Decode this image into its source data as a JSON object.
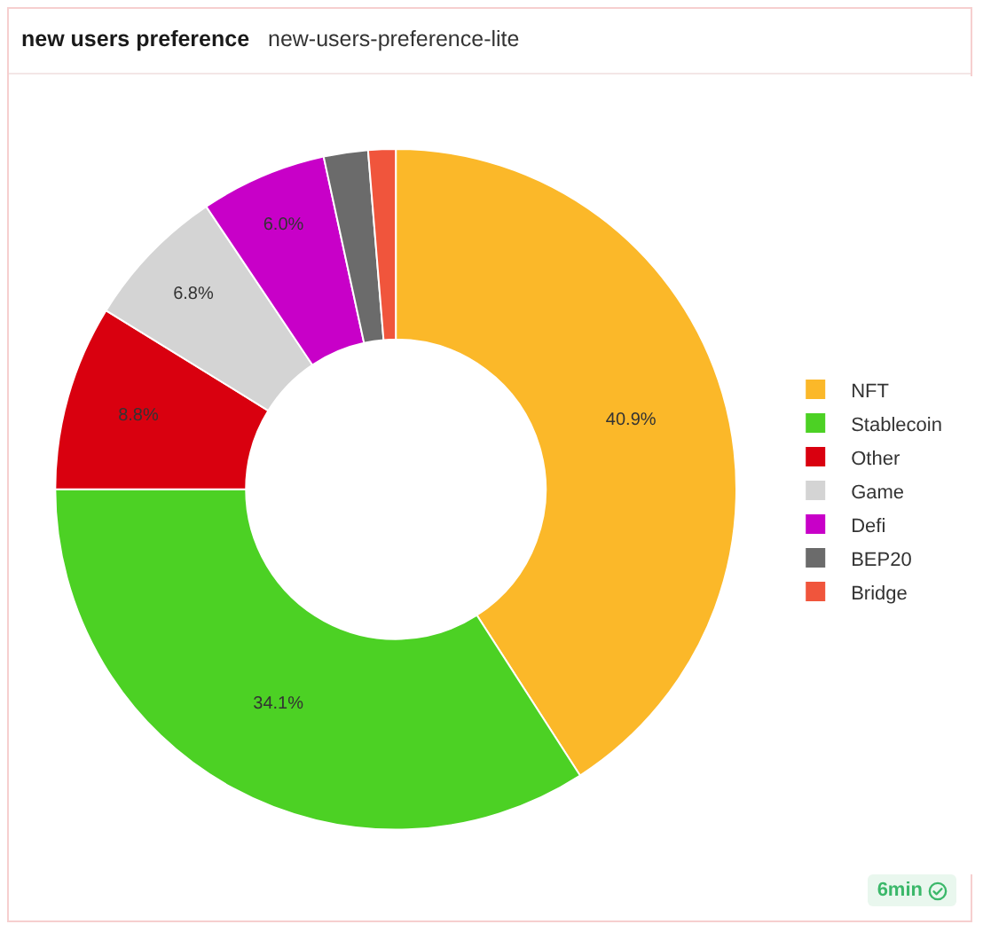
{
  "chart_data": {
    "type": "donut",
    "title": "new users preference",
    "subtitle": "new-users-preference-lite",
    "categories": [
      "NFT",
      "Stablecoin",
      "Other",
      "Game",
      "Defi",
      "BEP20",
      "Bridge"
    ],
    "values": [
      40.9,
      34.1,
      8.8,
      6.8,
      6.0,
      2.1,
      1.3
    ],
    "colors": [
      "#fbb829",
      "#4cd124",
      "#d9000f",
      "#d4d4d4",
      "#c800c8",
      "#6b6b6b",
      "#f0553c"
    ],
    "value_labels": [
      "40.9%",
      "34.1%",
      "8.8%",
      "6.8%",
      "6.0%",
      null,
      null
    ],
    "legend": "right",
    "annotations": [
      "6min"
    ]
  }
}
